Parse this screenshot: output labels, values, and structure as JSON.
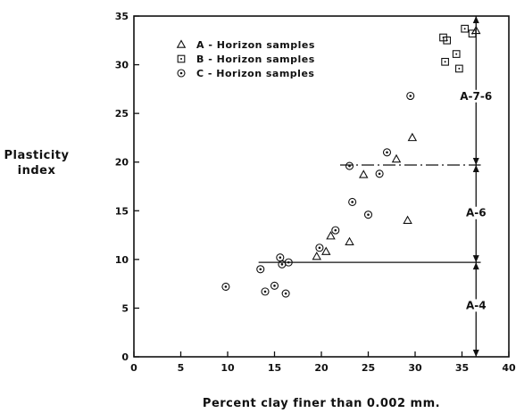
{
  "chart_data": {
    "type": "scatter",
    "xlabel": "Percent clay finer than 0.002 mm.",
    "ylabel_lines": [
      "Plasticity",
      "index"
    ],
    "xlim": [
      0,
      40
    ],
    "ylim": [
      0,
      35
    ],
    "x_ticks": [
      0,
      5,
      10,
      15,
      20,
      25,
      30,
      35,
      40
    ],
    "y_ticks": [
      0,
      5,
      10,
      15,
      20,
      25,
      30,
      35
    ],
    "grid": false,
    "legend_position": "top-left",
    "series": [
      {
        "name": "A - Horizon samples",
        "marker": "triangle",
        "points": [
          [
            19.5,
            10.3
          ],
          [
            20.5,
            10.8
          ],
          [
            21,
            12.4
          ],
          [
            23,
            11.8
          ],
          [
            24.5,
            18.7
          ],
          [
            28,
            20.3
          ],
          [
            29.2,
            14
          ],
          [
            29.7,
            22.5
          ],
          [
            36.5,
            33.5
          ]
        ]
      },
      {
        "name": "B - Horizon samples",
        "marker": "square",
        "points": [
          [
            33,
            32.8
          ],
          [
            33.4,
            32.5
          ],
          [
            33.2,
            30.3
          ],
          [
            34.4,
            31.1
          ],
          [
            34.7,
            29.6
          ],
          [
            35.3,
            33.7
          ],
          [
            36.1,
            33.2
          ]
        ]
      },
      {
        "name": "C - Horizon samples",
        "marker": "circle",
        "points": [
          [
            9.8,
            7.2
          ],
          [
            13.5,
            9
          ],
          [
            14,
            6.7
          ],
          [
            15,
            7.3
          ],
          [
            15.6,
            10.2
          ],
          [
            15.8,
            9.5
          ],
          [
            16.2,
            6.5
          ],
          [
            16.5,
            9.7
          ],
          [
            19.8,
            11.2
          ],
          [
            21.5,
            13
          ],
          [
            23,
            19.6
          ],
          [
            23.3,
            15.9
          ],
          [
            25,
            14.6
          ],
          [
            26.2,
            18.8
          ],
          [
            27,
            21
          ],
          [
            29.5,
            26.8
          ]
        ]
      }
    ],
    "boundaries": [
      {
        "style": "solid",
        "x_start": 13.3,
        "x_end": 37,
        "y": 9.7
      },
      {
        "style": "dash-dot",
        "x_start": 22,
        "x_end": 37,
        "y": 19.7
      }
    ],
    "classification_axis_x": 36.5,
    "zones": [
      {
        "label": "A-4",
        "y_from": 0,
        "y_to": 9.7,
        "label_y": 5
      },
      {
        "label": "A-6",
        "y_from": 9.7,
        "y_to": 19.7,
        "label_y": 14.5
      },
      {
        "label": "A-7-6",
        "y_from": 19.7,
        "y_to": 35,
        "label_y": 26.5
      }
    ]
  }
}
